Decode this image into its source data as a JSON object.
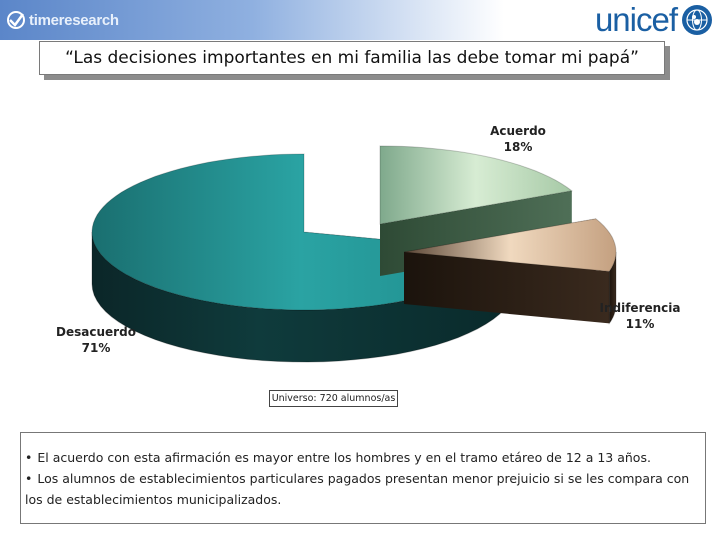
{
  "header": {
    "left_logo_text": "timeresearch",
    "right_logo_text": "unicef"
  },
  "title": "“Las decisiones importantes en mi familia las debe tomar mi papá”",
  "chart_data": {
    "type": "pie",
    "title": "“Las decisiones importantes en mi familia las debe tomar mi papá”",
    "style": "3d-exploded",
    "slices": [
      {
        "name": "Acuerdo",
        "value": 18,
        "label": "18%",
        "color": "#b7d6b4"
      },
      {
        "name": "Indiferencia",
        "value": 11,
        "label": "11%",
        "color": "#a08a74"
      },
      {
        "name": "Desacuerdo",
        "value": 71,
        "label": "71%",
        "color": "#1e8a8a"
      }
    ],
    "labels": {
      "acuerdo_name": "Acuerdo",
      "acuerdo_pct": "18%",
      "indiferencia_name": "Indiferencia",
      "indiferencia_pct": "11%",
      "desacuerdo_name": "Desacuerdo",
      "desacuerdo_pct": "71%"
    }
  },
  "base_note": "Universo: 720 alumnos/as",
  "notes": {
    "bullet": "•",
    "line1": "El acuerdo con esta afirmación es mayor entre los hombres y en el tramo etáreo de 12 a 13 años.",
    "line2": "Los alumnos de establecimientos particulares pagados presentan menor prejuicio si se les compara con los de establecimientos municipalizados."
  }
}
